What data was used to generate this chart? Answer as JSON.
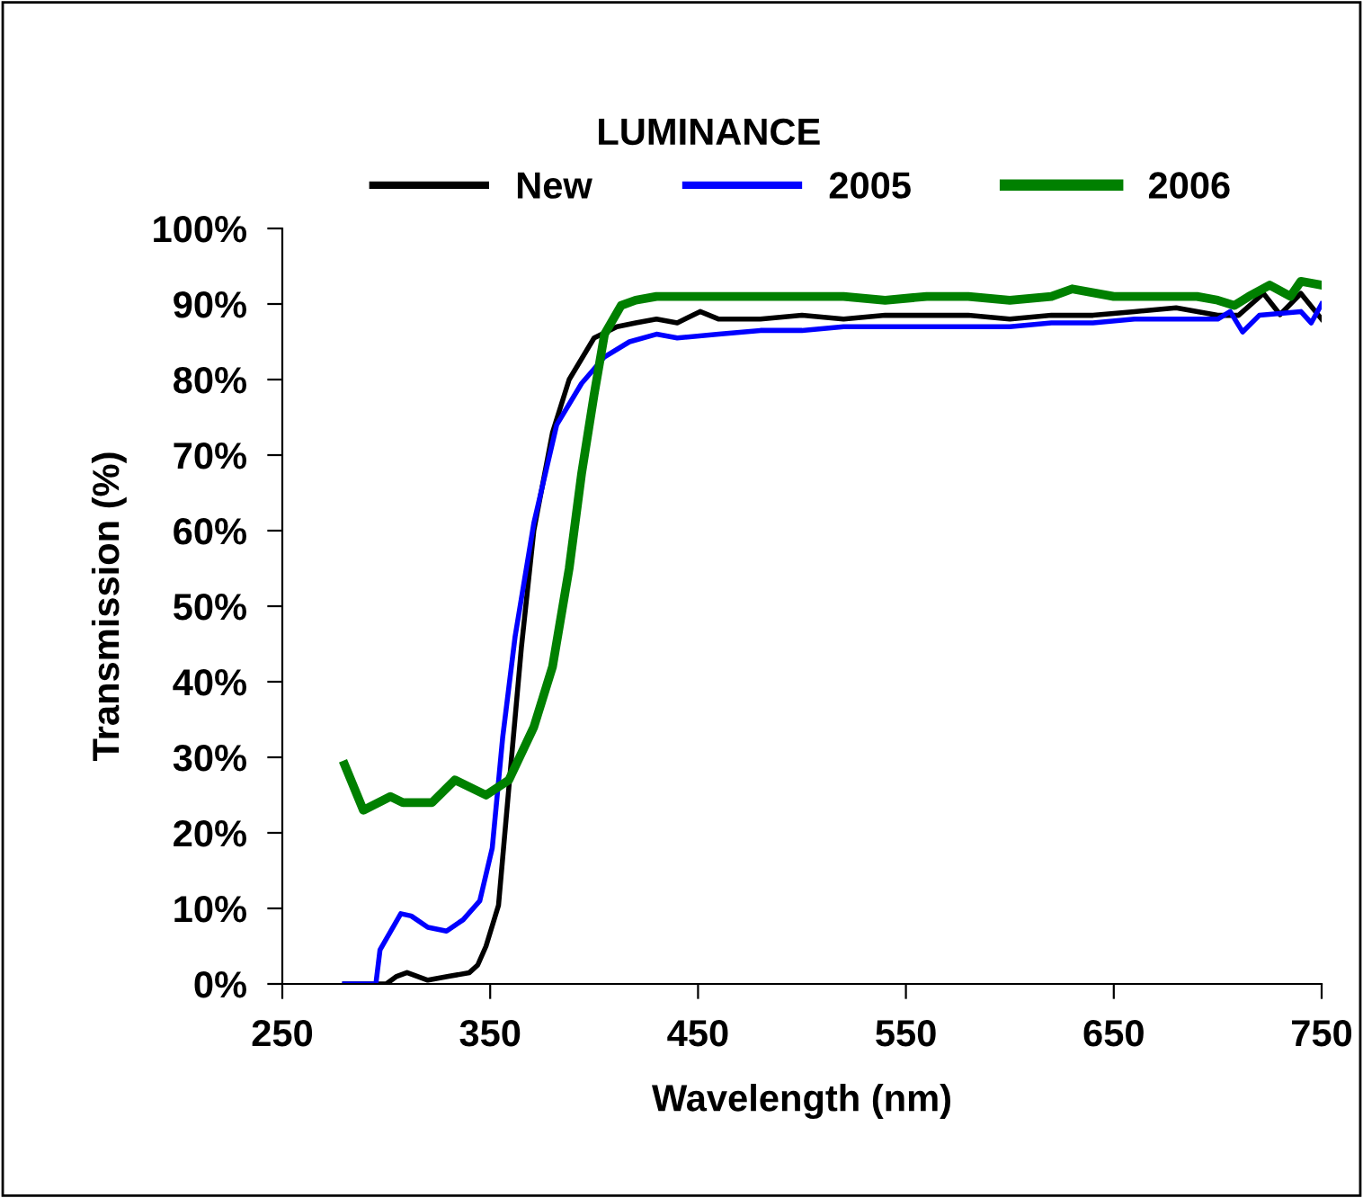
{
  "chart_data": {
    "type": "line",
    "title": "LUMINANCE",
    "xlabel": "Wavelength (nm)",
    "ylabel": "Transmission (%)",
    "xlim": [
      250,
      750
    ],
    "xticks": [
      250,
      350,
      450,
      550,
      650,
      750
    ],
    "ylim": [
      0,
      100
    ],
    "yticks": [
      {
        "value": 0,
        "label": "0%"
      },
      {
        "value": 10,
        "label": "10%"
      },
      {
        "value": 20,
        "label": "20%"
      },
      {
        "value": 30,
        "label": "30%"
      },
      {
        "value": 40,
        "label": "40%"
      },
      {
        "value": 50,
        "label": "50%"
      },
      {
        "value": 60,
        "label": "60%"
      },
      {
        "value": 70,
        "label": "70%"
      },
      {
        "value": 80,
        "label": "80%"
      },
      {
        "value": 90,
        "label": "90%"
      },
      {
        "value": 100,
        "label": "100%"
      }
    ],
    "grid": false,
    "legend": "top",
    "marker": "none",
    "line_style": "solid",
    "series": [
      {
        "name": "New",
        "color": "#000000",
        "x": [
          280,
          290,
          300,
          305,
          310,
          320,
          330,
          340,
          344,
          348,
          354,
          359,
          365,
          371,
          380,
          388,
          400,
          411,
          420,
          430,
          440,
          451,
          460,
          480,
          500,
          520,
          540,
          560,
          580,
          600,
          620,
          640,
          660,
          680,
          700,
          710,
          722,
          730,
          740,
          750
        ],
        "values": [
          0,
          0,
          0,
          1,
          1.5,
          0.5,
          1,
          1.5,
          2.5,
          5,
          10.4,
          26,
          44.5,
          60,
          73,
          80,
          85.5,
          87,
          87.5,
          88,
          87.5,
          89,
          88,
          88,
          88.5,
          88,
          88.5,
          88.5,
          88.5,
          88,
          88.5,
          88.5,
          89,
          89.5,
          88.5,
          88.5,
          91.4,
          88.6,
          91.4,
          88
        ]
      },
      {
        "name": "2005",
        "color": "#0000ff",
        "x": [
          280,
          290,
          295,
          297,
          307,
          312,
          320,
          329,
          337,
          345,
          351,
          356,
          362,
          371,
          382,
          394,
          405,
          417,
          430,
          440,
          460,
          480,
          500,
          520,
          540,
          560,
          580,
          600,
          620,
          640,
          660,
          680,
          700,
          706,
          712,
          720,
          740,
          745,
          750
        ],
        "values": [
          0,
          0,
          0,
          4.5,
          9.3,
          9,
          7.5,
          7,
          8.5,
          11,
          18,
          32.6,
          46,
          61,
          74,
          79.5,
          83,
          85,
          86,
          85.5,
          86,
          86.5,
          86.5,
          87,
          87,
          87,
          87,
          87,
          87.5,
          87.5,
          88,
          88,
          88,
          89,
          86.3,
          88.5,
          89,
          87.5,
          90
        ]
      },
      {
        "name": "2006",
        "color": "#008000",
        "x": [
          280,
          289,
          302,
          308,
          322,
          333,
          348,
          359,
          371,
          380,
          388,
          394,
          400,
          405,
          413,
          420,
          430,
          450,
          470,
          500,
          520,
          540,
          560,
          580,
          600,
          620,
          630,
          650,
          670,
          690,
          700,
          708,
          715,
          725,
          735,
          740,
          750
        ],
        "values": [
          29,
          23,
          24.8,
          24,
          24,
          27,
          25,
          27,
          34,
          42,
          55,
          67.6,
          78,
          86,
          89.8,
          90.5,
          91,
          91,
          91,
          91,
          91,
          90.5,
          91,
          91,
          90.5,
          91,
          92,
          91,
          91,
          91,
          90.5,
          89.8,
          91,
          92.5,
          91,
          93,
          92.5
        ]
      }
    ]
  }
}
